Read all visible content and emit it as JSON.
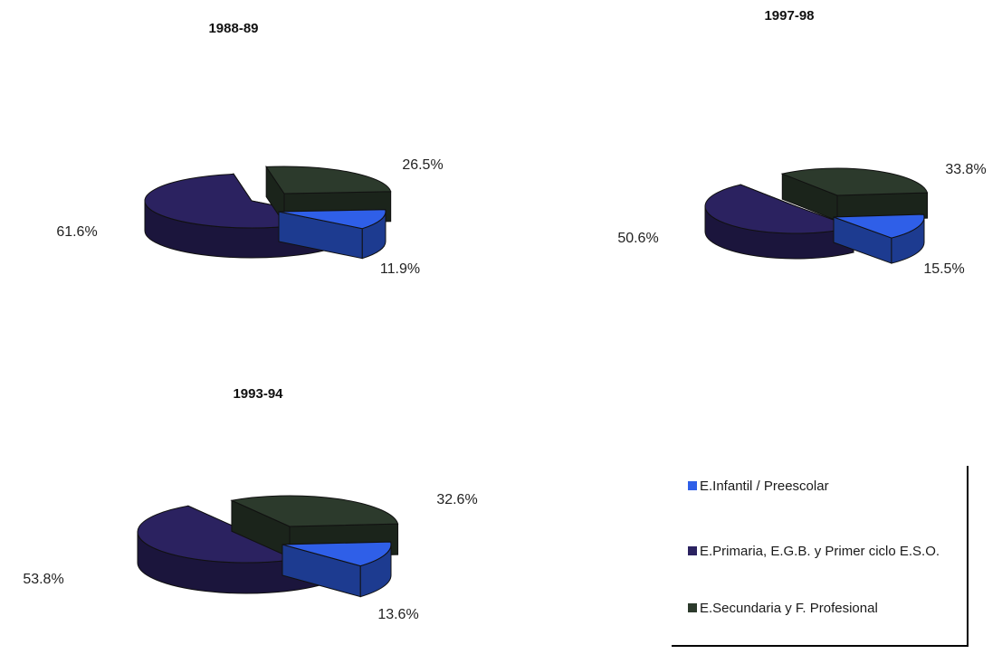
{
  "colors": {
    "infantil": "#2f5fe8",
    "primaria": "#2b2260",
    "secundaria": "#2c3a2c"
  },
  "legend": {
    "items": [
      {
        "label": "E.Infantil / Preescolar",
        "color": "#2f5fe8"
      },
      {
        "label": "E.Primaria, E.G.B. y Primer ciclo E.S.O.",
        "color": "#2b2260"
      },
      {
        "label": "E.Secundaria y F. Profesional",
        "color": "#2c3a2c"
      }
    ]
  },
  "chart_data": [
    {
      "type": "pie",
      "title": "1988-89",
      "categories": [
        "E.Infantil / Preescolar",
        "E.Primaria, E.G.B. y Primer ciclo E.S.O.",
        "E.Secundaria y F. Profesional"
      ],
      "values": [
        11.9,
        61.6,
        26.5
      ],
      "labels": [
        "11.9%",
        "61.6%",
        "26.5%"
      ],
      "style": "3d-exploded"
    },
    {
      "type": "pie",
      "title": "1993-94",
      "categories": [
        "E.Infantil / Preescolar",
        "E.Primaria, E.G.B. y Primer ciclo E.S.O.",
        "E.Secundaria y F. Profesional"
      ],
      "values": [
        13.6,
        53.8,
        32.6
      ],
      "labels": [
        "13.6%",
        "53.8%",
        "32.6%"
      ],
      "style": "3d-exploded"
    },
    {
      "type": "pie",
      "title": "1997-98",
      "categories": [
        "E.Infantil / Preescolar",
        "E.Primaria, E.G.B. y Primer ciclo E.S.O.",
        "E.Secundaria y F. Profesional"
      ],
      "values": [
        15.5,
        50.6,
        33.8
      ],
      "labels": [
        "15.5%",
        "50.6%",
        "33.8%"
      ],
      "style": "3d-exploded"
    }
  ]
}
